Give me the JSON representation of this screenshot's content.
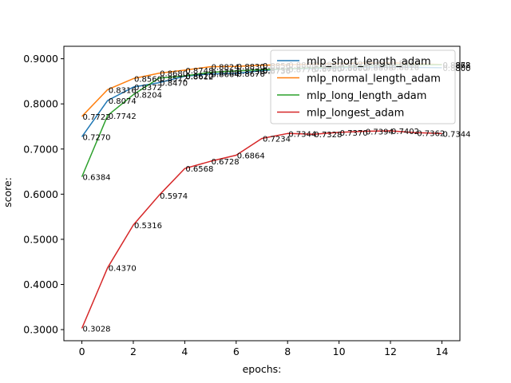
{
  "chart_data": {
    "type": "line",
    "xlabel": "epochs:",
    "ylabel": "score:",
    "xlim": [
      -0.7,
      14.7
    ],
    "ylim": [
      0.2754,
      0.9276
    ],
    "xticks": [
      0,
      2,
      4,
      6,
      8,
      10,
      12,
      14
    ],
    "xtick_labels": [
      "0",
      "2",
      "4",
      "6",
      "8",
      "10",
      "12",
      "14"
    ],
    "yticks": [
      0.3,
      0.4,
      0.5,
      0.6,
      0.7,
      0.8,
      0.9
    ],
    "ytick_labels": [
      "0.3000",
      "0.4000",
      "0.5000",
      "0.6000",
      "0.7000",
      "0.8000",
      "0.9000"
    ],
    "grid": false,
    "legend_position": "upper right",
    "x": [
      0,
      1,
      2,
      3,
      4,
      5,
      6,
      7,
      8,
      9,
      10,
      11,
      12,
      14
    ],
    "series": [
      {
        "name": "mlp_short_length_adam",
        "color": "#1f77b4",
        "values": [
          0.727,
          0.8074,
          0.8372,
          0.847,
          0.8612,
          0.8664,
          0.8676,
          0.8736,
          0.8776,
          0.878,
          0.88,
          0.8808,
          0.8816,
          0.88
        ]
      },
      {
        "name": "mlp_normal_length_adam",
        "color": "#ff7f0e",
        "values": [
          0.7722,
          0.8316,
          0.856,
          0.868,
          0.8748,
          0.8824,
          0.883,
          0.8856,
          0.8868,
          0.888,
          0.8892,
          0.8904,
          0.891,
          0.8872
        ]
      },
      {
        "name": "mlp_long_length_adam",
        "color": "#2ca02c",
        "values": [
          0.6384,
          0.7742,
          0.8204,
          0.8572,
          0.862,
          0.87,
          0.873,
          0.8756,
          0.8776,
          0.88,
          0.882,
          0.884,
          0.886,
          0.8868
        ]
      },
      {
        "name": "mlp_longest_adam",
        "color": "#d62728",
        "values": [
          0.3028,
          0.437,
          0.5316,
          0.5974,
          0.6568,
          0.6728,
          0.6864,
          0.7234,
          0.7344,
          0.7328,
          0.737,
          0.7394,
          0.7402,
          0.7362,
          0.7344
        ],
        "x": [
          0,
          1,
          2,
          3,
          4,
          5,
          6,
          7,
          8,
          9,
          10,
          11,
          12,
          13,
          14
        ]
      }
    ]
  }
}
